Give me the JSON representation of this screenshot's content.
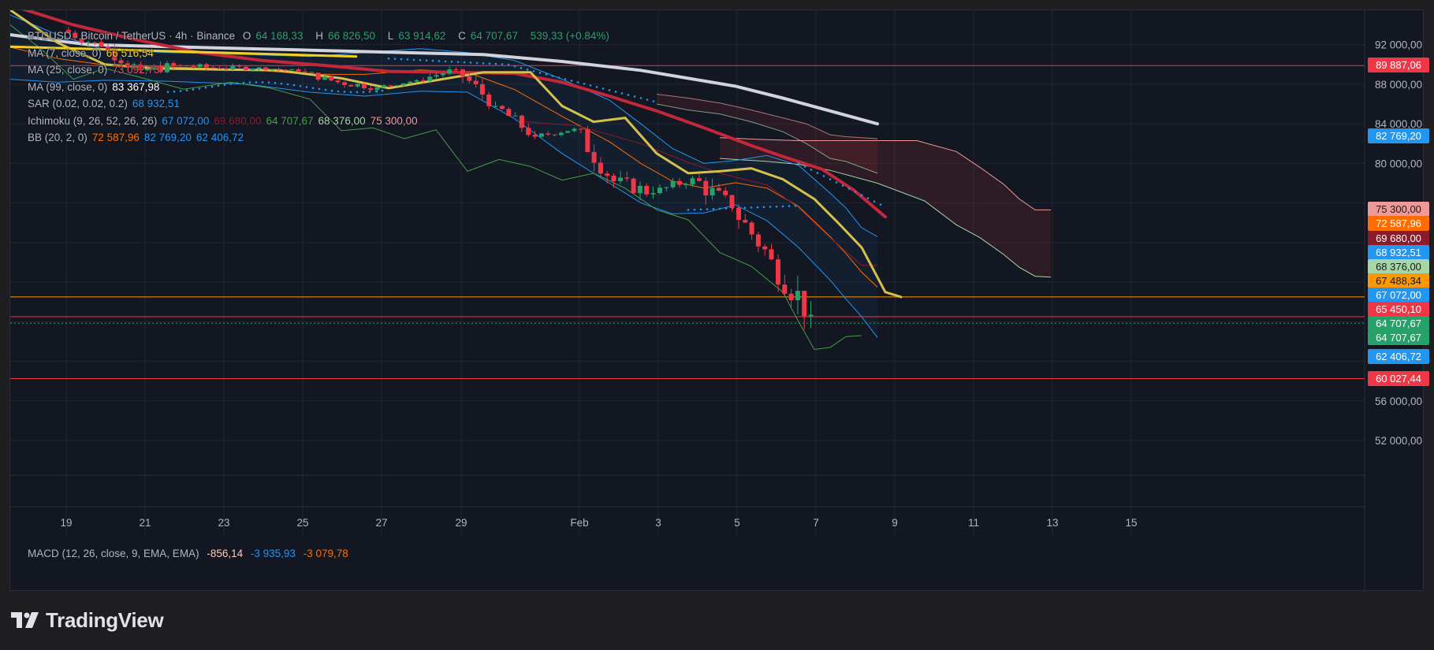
{
  "header": {
    "title": "BTCUSD · Bitcoin / TetherUS · 4h · Binance",
    "ohlc": [
      {
        "label": "O",
        "value": "64 168,33"
      },
      {
        "label": "H",
        "value": "66 826,50"
      },
      {
        "label": "L",
        "value": "63 914,62"
      },
      {
        "label": "C",
        "value": "64 707,67"
      }
    ],
    "change": "539,33 (+0.84%)"
  },
  "indicators": [
    {
      "name": "MA (7, close, 0)",
      "values": [
        {
          "v": "66 516,54",
          "color": "#f2d024"
        }
      ]
    },
    {
      "name": "MA (25, close, 0)",
      "values": [
        {
          "v": "73 092,73",
          "color": "#e84d5b"
        }
      ]
    },
    {
      "name": "MA (99, close, 0)",
      "values": [
        {
          "v": "83 367,98",
          "color": "#ffffff"
        }
      ]
    },
    {
      "name": "SAR (0.02, 0.02, 0.2)",
      "values": [
        {
          "v": "68 932,51",
          "color": "#2196f3"
        }
      ]
    },
    {
      "name": "Ichimoku (9, 26, 52, 26, 26)",
      "values": [
        {
          "v": "67 072,00",
          "color": "#2196f3"
        },
        {
          "v": "69 680,00",
          "color": "#8b1a2a"
        },
        {
          "v": "64 707,67",
          "color": "#43a047"
        },
        {
          "v": "68 376,00",
          "color": "#a5d6a7"
        },
        {
          "v": "75 300,00",
          "color": "#ef9a9a"
        }
      ]
    },
    {
      "name": "BB (20, 2, 0)",
      "values": [
        {
          "v": "72 587,96",
          "color": "#ff6d00"
        },
        {
          "v": "82 769,20",
          "color": "#2196f3"
        },
        {
          "v": "62 406,72",
          "color": "#2196f3"
        }
      ]
    }
  ],
  "macd": {
    "name": "MACD (12, 26, close, 9, EMA, EMA)",
    "values": [
      {
        "v": "-856,14",
        "color": "#ffccbc"
      },
      {
        "v": "-3 935,93",
        "color": "#2196f3"
      },
      {
        "v": "-3 079,78",
        "color": "#ff6d00"
      }
    ]
  },
  "price_axis": [
    "92 000,00",
    "88 000,00",
    "84 000,00",
    "80 000,00",
    "56 000,00",
    "52 000,00"
  ],
  "price_tags": [
    {
      "label": "89 887,06",
      "price": 89887.06,
      "bg": "#f23645",
      "fg": "#ffffff"
    },
    {
      "label": "82 769,20",
      "price": 82769.2,
      "bg": "#2196f3",
      "fg": "#ffffff"
    },
    {
      "label": "75 300,00",
      "price": 75300,
      "bg": "#ef9a9a",
      "fg": "#1a1a1a"
    },
    {
      "label": "72 587,96",
      "price": 73880,
      "bg": "#ff6d00",
      "fg": "#ffffff"
    },
    {
      "label": "69 680,00",
      "price": 72420,
      "bg": "#8b1a2a",
      "fg": "#ffffff"
    },
    {
      "label": "68 932,51",
      "price": 70980,
      "bg": "#2196f3",
      "fg": "#ffffff"
    },
    {
      "label": "68 376,00",
      "price": 69540,
      "bg": "#a5d6a7",
      "fg": "#1a1a1a"
    },
    {
      "label": "67 488,34",
      "price": 68100,
      "bg": "#ff9800",
      "fg": "#1a1a1a"
    },
    {
      "label": "67 072,00",
      "price": 66660,
      "bg": "#2196f3",
      "fg": "#ffffff"
    },
    {
      "label": "65 450,10",
      "price": 65200,
      "bg": "#f23645",
      "fg": "#ffffff"
    },
    {
      "label": "64 707,67",
      "price": 63760,
      "bg": "#26a269",
      "fg": "#ffffff"
    },
    {
      "label": "64 707,67",
      "price": 62320,
      "bg": "#26a269",
      "fg": "#ffffff"
    },
    {
      "label": "62 406,72",
      "price": 60460,
      "bg": "#2196f3",
      "fg": "#ffffff"
    },
    {
      "label": "60 027,44",
      "price": 58250,
      "bg": "#f23645",
      "fg": "#ffffff"
    }
  ],
  "time_axis": [
    "19",
    "21",
    "23",
    "25",
    "27",
    "29",
    "Feb",
    "3",
    "5",
    "7",
    "9",
    "11",
    "13",
    "15"
  ],
  "horizontal_lines": [
    {
      "price": 89887.06,
      "color": "#f23645"
    },
    {
      "price": 66500,
      "color": "#ff9800"
    },
    {
      "price": 64500,
      "color": "#f23645"
    },
    {
      "price": 58250,
      "color": "#f23645"
    }
  ],
  "brand": "TradingView",
  "chart_data": {
    "type": "candlestick",
    "symbol": "BTCUSD",
    "interval": "4h",
    "x_axis": "date (Jan – Feb 15)",
    "y_axis_range": [
      48500,
      95000
    ],
    "candles_daily_approx": [
      {
        "date": "Jan 19",
        "o": 93500,
        "h": 94500,
        "l": 90800,
        "c": 91800
      },
      {
        "date": "Jan 20",
        "o": 91800,
        "h": 92800,
        "l": 88500,
        "c": 89400
      },
      {
        "date": "Jan 21",
        "o": 89400,
        "h": 90800,
        "l": 87400,
        "c": 89900
      },
      {
        "date": "Jan 22",
        "o": 89900,
        "h": 90800,
        "l": 88800,
        "c": 89600
      },
      {
        "date": "Jan 23",
        "o": 89600,
        "h": 90400,
        "l": 88700,
        "c": 89700
      },
      {
        "date": "Jan 24",
        "o": 89700,
        "h": 90100,
        "l": 88900,
        "c": 89300
      },
      {
        "date": "Jan 25",
        "o": 89300,
        "h": 89700,
        "l": 87400,
        "c": 88200
      },
      {
        "date": "Jan 26",
        "o": 88200,
        "h": 88500,
        "l": 86100,
        "c": 87700
      },
      {
        "date": "Jan 27",
        "o": 87700,
        "h": 88600,
        "l": 87300,
        "c": 88400
      },
      {
        "date": "Jan 28",
        "o": 88400,
        "h": 90200,
        "l": 88000,
        "c": 89500
      },
      {
        "date": "Jan 29",
        "o": 89500,
        "h": 89900,
        "l": 85200,
        "c": 85800
      },
      {
        "date": "Jan 30",
        "o": 85800,
        "h": 86000,
        "l": 81800,
        "c": 82700
      },
      {
        "date": "Jan 31",
        "o": 82700,
        "h": 84300,
        "l": 82400,
        "c": 83500
      },
      {
        "date": "Feb 1",
        "o": 83500,
        "h": 83800,
        "l": 76800,
        "c": 78200
      },
      {
        "date": "Feb 2",
        "o": 78200,
        "h": 79500,
        "l": 74600,
        "c": 77000
      },
      {
        "date": "Feb 3",
        "o": 77000,
        "h": 79200,
        "l": 75800,
        "c": 78500
      },
      {
        "date": "Feb 4",
        "o": 78500,
        "h": 79000,
        "l": 72200,
        "c": 75500
      },
      {
        "date": "Feb 5",
        "o": 75500,
        "h": 75900,
        "l": 68500,
        "c": 70300
      },
      {
        "date": "Feb 6",
        "o": 70300,
        "h": 70800,
        "l": 60027.44,
        "c": 64707.67
      }
    ]
  }
}
